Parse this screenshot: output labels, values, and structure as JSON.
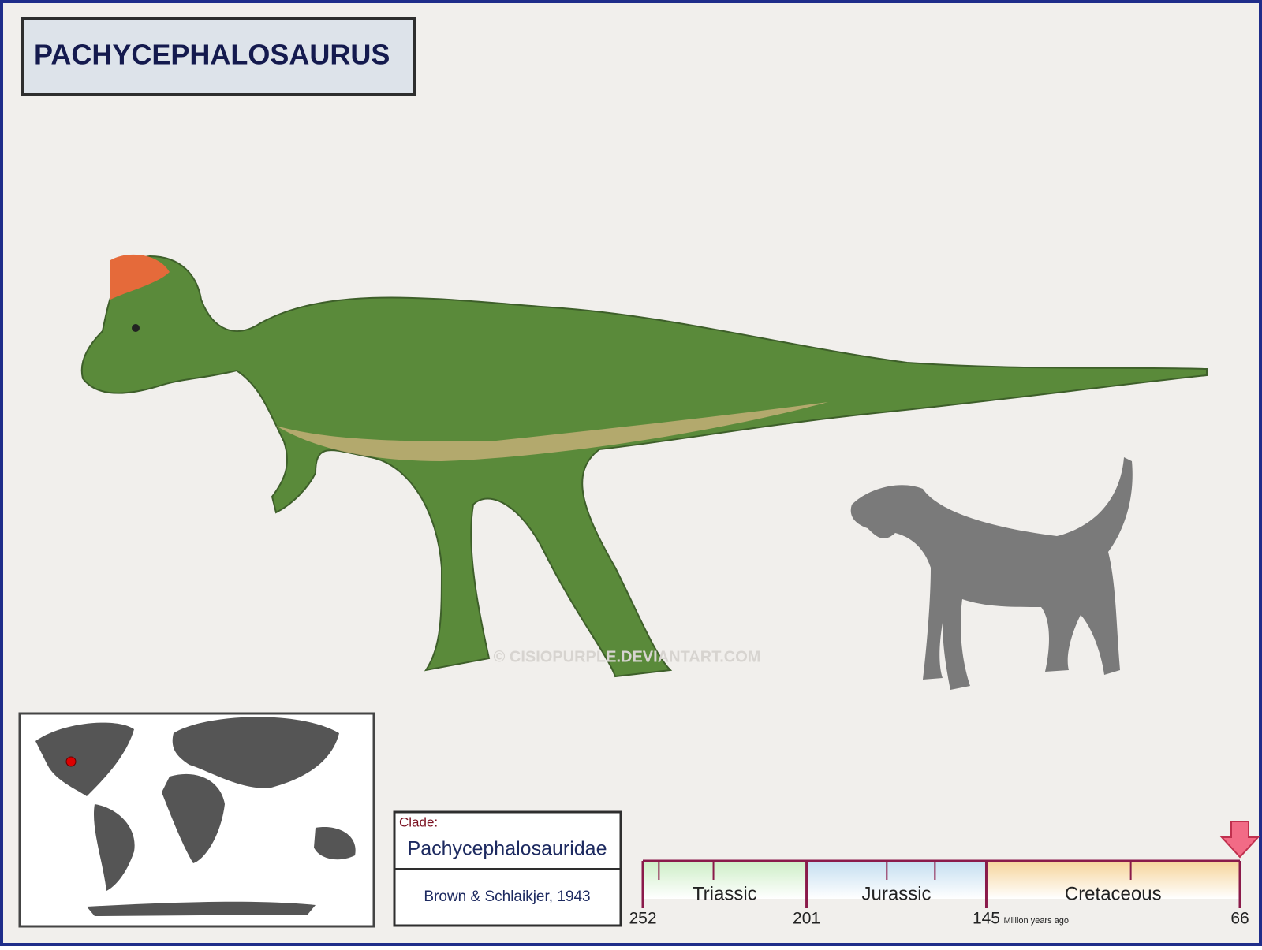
{
  "title": "PACHYCEPHALOSAURUS",
  "clade": {
    "label": "Clade:",
    "name": "Pachycephalosauridae",
    "author": "Brown & Schlaikjer, 1943"
  },
  "watermark": "© CISIOPURPLE.DEVIANTART.COM",
  "timeline": {
    "xlim": [
      252,
      66
    ],
    "ticks": [
      252,
      201,
      145,
      66
    ],
    "minor_ticks": [
      247,
      230,
      176,
      161,
      100
    ],
    "unit": "Million years ago",
    "periods": [
      {
        "name": "Triassic",
        "start": 252,
        "end": 201,
        "color": "#cdeec6"
      },
      {
        "name": "Jurassic",
        "start": 201,
        "end": 145,
        "color": "#c4def0"
      },
      {
        "name": "Cretaceous",
        "start": 145,
        "end": 66,
        "color": "#f6d49a"
      }
    ],
    "marker": 66,
    "marker_color": "#f26b86"
  }
}
